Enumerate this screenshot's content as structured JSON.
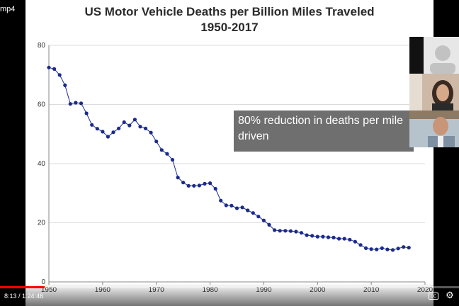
{
  "player": {
    "file_label": "mp4",
    "time_current": "8:13",
    "time_separator": " / ",
    "time_total": "1:24:46",
    "progress_fraction": 0.097,
    "cc_label": "CC",
    "progress_color": "#ff0000"
  },
  "slide": {
    "title_line1": "US Motor Vehicle Deaths per Billion Miles Traveled",
    "title_line2": "1950-2017",
    "callout_text": "80% reduction in deaths per mile driven"
  },
  "chart_data": {
    "type": "line",
    "title": "US Motor Vehicle Deaths per Billion Miles Traveled 1950-2017",
    "xlabel": "",
    "ylabel": "",
    "xlim": [
      1950,
      2020
    ],
    "ylim": [
      0,
      80
    ],
    "x_ticks": [
      1950,
      1960,
      1970,
      1980,
      1990,
      2000,
      2010,
      2020
    ],
    "y_ticks": [
      0,
      20,
      40,
      60,
      80
    ],
    "grid": true,
    "line_color": "#1a2a8c",
    "x": [
      1950,
      1951,
      1952,
      1953,
      1954,
      1955,
      1956,
      1957,
      1958,
      1959,
      1960,
      1961,
      1962,
      1963,
      1964,
      1965,
      1966,
      1967,
      1968,
      1969,
      1970,
      1971,
      1972,
      1973,
      1974,
      1975,
      1976,
      1977,
      1978,
      1979,
      1980,
      1981,
      1982,
      1983,
      1984,
      1985,
      1986,
      1987,
      1988,
      1989,
      1990,
      1991,
      1992,
      1993,
      1994,
      1995,
      1996,
      1997,
      1998,
      1999,
      2000,
      2001,
      2002,
      2003,
      2004,
      2005,
      2006,
      2007,
      2008,
      2009,
      2010,
      2011,
      2012,
      2013,
      2014,
      2015,
      2016,
      2017
    ],
    "y": [
      72.5,
      72,
      70,
      66.5,
      60.2,
      60.6,
      60.4,
      57,
      53.1,
      51.8,
      50.8,
      49.1,
      50.6,
      51.9,
      54,
      52.9,
      54.9,
      52.5,
      51.9,
      50.5,
      47.5,
      44.6,
      43.3,
      41.3,
      35.3,
      33.6,
      32.5,
      32.5,
      32.6,
      33.2,
      33.4,
      31.5,
      27.5,
      25.9,
      25.8,
      24.9,
      25.2,
      24.2,
      23.3,
      22.1,
      20.8,
      19.3,
      17.5,
      17.3,
      17.3,
      17.2,
      17,
      16.6,
      15.8,
      15.6,
      15.3,
      15.3,
      15.1,
      15,
      14.6,
      14.6,
      14.3,
      13.6,
      12.5,
      11.4,
      11.1,
      11,
      11.4,
      11,
      10.8,
      11.3,
      11.8,
      11.6
    ]
  },
  "video_tiles": [
    {
      "name": "participant-1",
      "color": "#e7e7e7"
    },
    {
      "name": "participant-2",
      "color": "#d8c7b7"
    },
    {
      "name": "participant-3",
      "color": "#a9b6c2"
    }
  ]
}
